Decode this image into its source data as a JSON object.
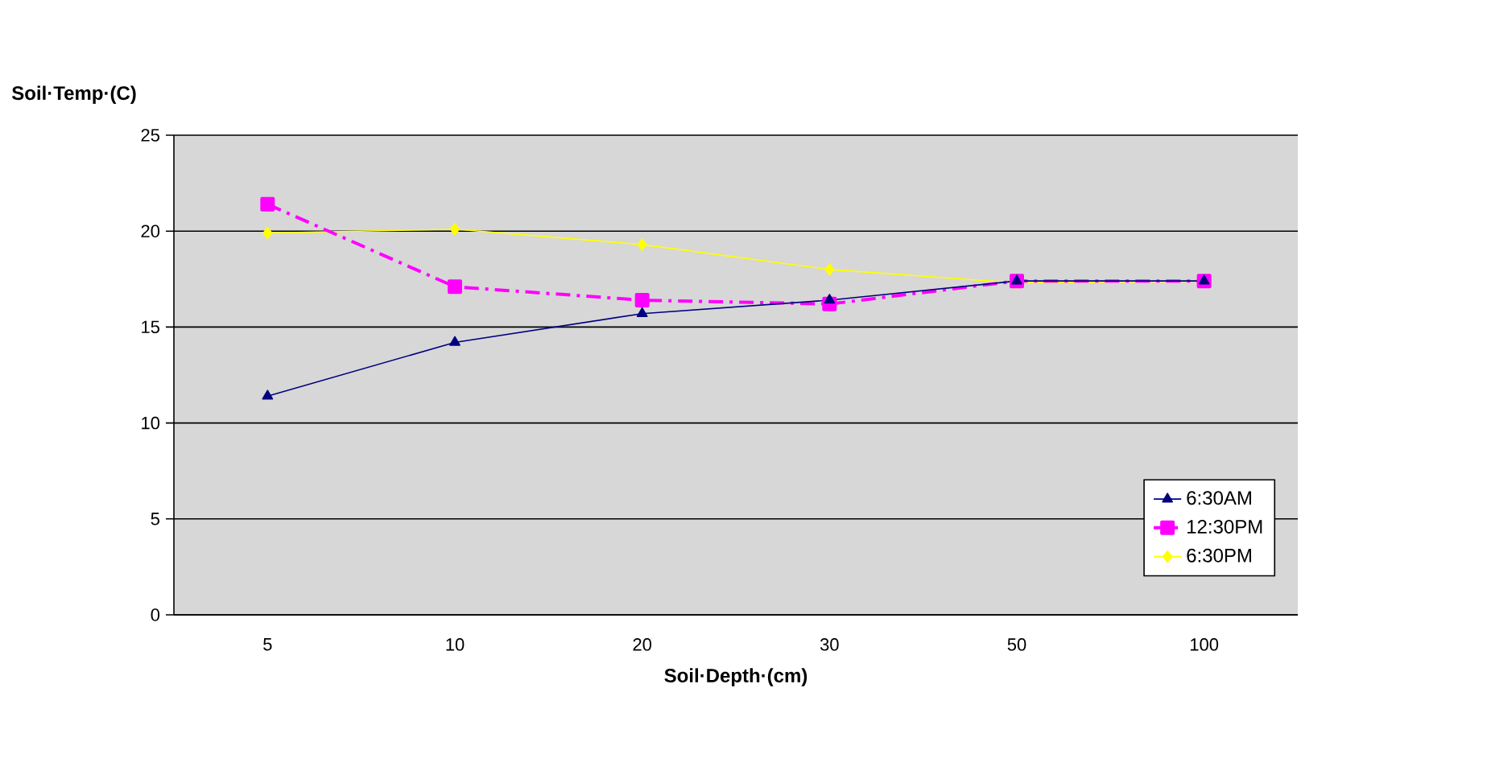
{
  "chart_data": {
    "type": "line",
    "ylabel": "Soil·Temp·(C)",
    "xlabel": "Soil·Depth·(cm)",
    "categories": [
      "5",
      "10",
      "20",
      "30",
      "50",
      "100"
    ],
    "series": [
      {
        "name": "6:30AM",
        "color": "#000080",
        "marker": "triangle",
        "line_style": "solid",
        "values": [
          11.4,
          14.2,
          15.7,
          16.4,
          17.4,
          17.4
        ]
      },
      {
        "name": "12:30PM",
        "color": "#ff00ff",
        "marker": "square",
        "line_style": "dashed",
        "values": [
          21.4,
          17.1,
          16.4,
          16.2,
          17.4,
          17.4
        ]
      },
      {
        "name": "6:30PM",
        "color": "#ffff00",
        "marker": "diamond",
        "line_style": "solid",
        "values": [
          19.9,
          20.1,
          19.3,
          18.0,
          17.3,
          17.4
        ]
      }
    ],
    "ylim": [
      0,
      25
    ],
    "yticks": [
      0,
      5,
      10,
      15,
      20,
      25
    ],
    "grid": "y",
    "legend": "bottom right"
  }
}
